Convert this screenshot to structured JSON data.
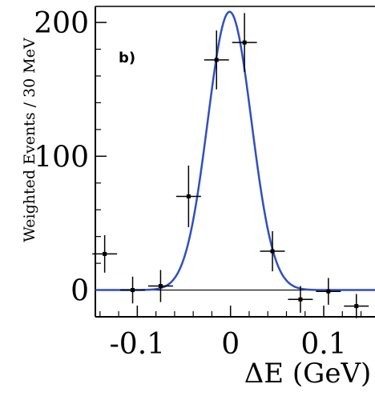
{
  "chart_data": {
    "type": "scatter",
    "panel_label": "b)",
    "xlabel": "ΔE (GeV)",
    "ylabel": "Weighted Events / 30 MeV",
    "xlim": [
      -0.145,
      0.155
    ],
    "ylim": [
      -20,
      212
    ],
    "x_ticks": [
      -0.1,
      0,
      0.1
    ],
    "x_tick_labels": [
      "-0.1",
      "0",
      "0.1"
    ],
    "y_ticks": [
      0,
      100,
      200
    ],
    "y_tick_labels": [
      "0",
      "100",
      "200"
    ],
    "grid": false,
    "series": [
      {
        "type": "points_with_errors",
        "x_half_width": 0.007,
        "points": [
          {
            "x": -0.135,
            "y": 27,
            "yerr": 14
          },
          {
            "x": -0.105,
            "y": 0,
            "yerr": 10
          },
          {
            "x": -0.075,
            "y": 3,
            "yerr": 12
          },
          {
            "x": -0.045,
            "y": 70,
            "yerr": 23
          },
          {
            "x": -0.015,
            "y": 172,
            "yerr": 22
          },
          {
            "x": 0.015,
            "y": 185,
            "yerr": 22
          },
          {
            "x": 0.045,
            "y": 29,
            "yerr": 15
          },
          {
            "x": 0.075,
            "y": -7,
            "yerr": 10
          },
          {
            "x": 0.105,
            "y": -1,
            "yerr": 10
          },
          {
            "x": 0.135,
            "y": -12,
            "yerr": 9
          }
        ]
      },
      {
        "type": "curve",
        "shape": "gaussian",
        "color": "#2f4fbf",
        "amplitude": 208,
        "mean": -0.001,
        "sigma": 0.0235,
        "x_range": [
          -0.145,
          0.155
        ]
      }
    ]
  }
}
